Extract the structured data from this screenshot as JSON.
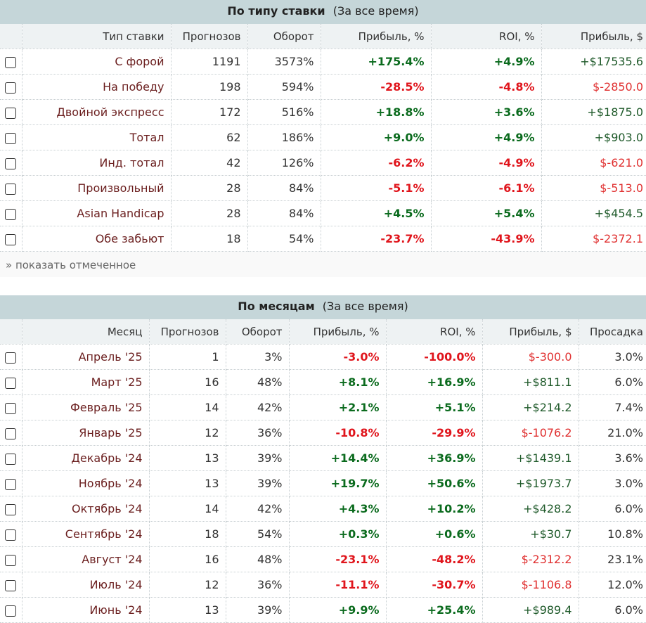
{
  "bet_type": {
    "title": "По типу ставки",
    "period": "(За все время)",
    "columns": [
      "Тип ставки",
      "Прогнозов",
      "Оборот",
      "Прибыль, %",
      "ROI, %",
      "Прибыль, $"
    ],
    "rows": [
      {
        "name": "С форой",
        "count": "1191",
        "turnover": "3573%",
        "profit_pct": "+175.4%",
        "roi": "+4.9%",
        "profit_usd": "+$17535.6"
      },
      {
        "name": "На победу",
        "count": "198",
        "turnover": "594%",
        "profit_pct": "-28.5%",
        "roi": "-4.8%",
        "profit_usd": "$-2850.0"
      },
      {
        "name": "Двойной экспресс",
        "count": "172",
        "turnover": "516%",
        "profit_pct": "+18.8%",
        "roi": "+3.6%",
        "profit_usd": "+$1875.0"
      },
      {
        "name": "Тотал",
        "count": "62",
        "turnover": "186%",
        "profit_pct": "+9.0%",
        "roi": "+4.9%",
        "profit_usd": "+$903.0"
      },
      {
        "name": "Инд. тотал",
        "count": "42",
        "turnover": "126%",
        "profit_pct": "-6.2%",
        "roi": "-4.9%",
        "profit_usd": "$-621.0"
      },
      {
        "name": "Произвольный",
        "count": "28",
        "turnover": "84%",
        "profit_pct": "-5.1%",
        "roi": "-6.1%",
        "profit_usd": "$-513.0"
      },
      {
        "name": "Asian Handicap",
        "count": "28",
        "turnover": "84%",
        "profit_pct": "+4.5%",
        "roi": "+5.4%",
        "profit_usd": "+$454.5"
      },
      {
        "name": "Обе забьют",
        "count": "18",
        "turnover": "54%",
        "profit_pct": "-23.7%",
        "roi": "-43.9%",
        "profit_usd": "$-2372.1"
      }
    ],
    "show_checked": "» показать отмеченное"
  },
  "by_month": {
    "title": "По месяцам",
    "period": "(За все время)",
    "columns": [
      "Месяц",
      "Прогнозов",
      "Оборот",
      "Прибыль, %",
      "ROI, %",
      "Прибыль, $",
      "Просадка"
    ],
    "rows": [
      {
        "name": "Апрель '25",
        "count": "1",
        "turnover": "3%",
        "profit_pct": "-3.0%",
        "roi": "-100.0%",
        "profit_usd": "$-300.0",
        "drawdown": "3.0%"
      },
      {
        "name": "Март '25",
        "count": "16",
        "turnover": "48%",
        "profit_pct": "+8.1%",
        "roi": "+16.9%",
        "profit_usd": "+$811.1",
        "drawdown": "6.0%"
      },
      {
        "name": "Февраль '25",
        "count": "14",
        "turnover": "42%",
        "profit_pct": "+2.1%",
        "roi": "+5.1%",
        "profit_usd": "+$214.2",
        "drawdown": "7.4%"
      },
      {
        "name": "Январь '25",
        "count": "12",
        "turnover": "36%",
        "profit_pct": "-10.8%",
        "roi": "-29.9%",
        "profit_usd": "$-1076.2",
        "drawdown": "21.0%"
      },
      {
        "name": "Декабрь '24",
        "count": "13",
        "turnover": "39%",
        "profit_pct": "+14.4%",
        "roi": "+36.9%",
        "profit_usd": "+$1439.1",
        "drawdown": "3.6%"
      },
      {
        "name": "Ноябрь '24",
        "count": "13",
        "turnover": "39%",
        "profit_pct": "+19.7%",
        "roi": "+50.6%",
        "profit_usd": "+$1973.7",
        "drawdown": "3.0%"
      },
      {
        "name": "Октябрь '24",
        "count": "14",
        "turnover": "42%",
        "profit_pct": "+4.3%",
        "roi": "+10.2%",
        "profit_usd": "+$428.2",
        "drawdown": "6.0%"
      },
      {
        "name": "Сентябрь '24",
        "count": "18",
        "turnover": "54%",
        "profit_pct": "+0.3%",
        "roi": "+0.6%",
        "profit_usd": "+$30.7",
        "drawdown": "10.8%"
      },
      {
        "name": "Август '24",
        "count": "16",
        "turnover": "48%",
        "profit_pct": "-23.1%",
        "roi": "-48.2%",
        "profit_usd": "$-2312.2",
        "drawdown": "23.1%"
      },
      {
        "name": "Июль '24",
        "count": "12",
        "turnover": "36%",
        "profit_pct": "-11.1%",
        "roi": "-30.7%",
        "profit_usd": "$-1106.8",
        "drawdown": "12.0%"
      },
      {
        "name": "Июнь '24",
        "count": "13",
        "turnover": "39%",
        "profit_pct": "+9.9%",
        "roi": "+25.4%",
        "profit_usd": "+$989.4",
        "drawdown": "6.0%"
      }
    ]
  },
  "colors": {
    "header_bg": "#c5d6d9",
    "positive": "#0b6b1e",
    "negative": "#e0151c",
    "name_text": "#6b1f1f"
  },
  "icons": {
    "row_checkbox": "checkbox-icon"
  }
}
